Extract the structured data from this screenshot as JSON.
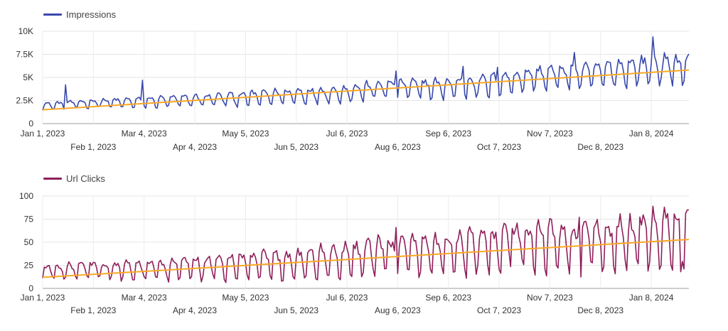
{
  "chart_data": [
    {
      "type": "line",
      "legend_position": "top-left",
      "grid": true,
      "series": [
        {
          "name": "Impressions",
          "color": "#3949ab",
          "monthly_avg": [
            {
              "date": "2023-01-01",
              "value": 1900
            },
            {
              "date": "2023-02-01",
              "value": 2200
            },
            {
              "date": "2023-03-01",
              "value": 2300
            },
            {
              "date": "2023-04-01",
              "value": 2500
            },
            {
              "date": "2023-05-01",
              "value": 2700
            },
            {
              "date": "2023-06-01",
              "value": 3000
            },
            {
              "date": "2023-07-01",
              "value": 3200
            },
            {
              "date": "2023-08-01",
              "value": 3800
            },
            {
              "date": "2023-09-01",
              "value": 3800
            },
            {
              "date": "2023-10-01",
              "value": 4200
            },
            {
              "date": "2023-11-01",
              "value": 5000
            },
            {
              "date": "2023-12-01",
              "value": 5200
            },
            {
              "date": "2024-01-01",
              "value": 5800
            },
            {
              "date": "2024-01-31",
              "value": 6000
            }
          ],
          "peaks": [
            {
              "date": "2023-01-15",
              "value": 4200
            },
            {
              "date": "2023-03-03",
              "value": 4700
            },
            {
              "date": "2023-08-05",
              "value": 5700
            },
            {
              "date": "2023-09-15",
              "value": 6200
            },
            {
              "date": "2023-10-06",
              "value": 6100
            },
            {
              "date": "2023-11-22",
              "value": 7700
            },
            {
              "date": "2024-01-09",
              "value": 9400
            }
          ],
          "weekly_amplitude_start": 350,
          "weekly_amplitude_end": 1500
        },
        {
          "name": "Trend",
          "color": "#f9a825",
          "trend": [
            {
              "date": "2023-01-01",
              "value": 1500
            },
            {
              "date": "2024-01-31",
              "value": 5800
            }
          ]
        }
      ],
      "x_start": "2023-01-01",
      "x_end": "2024-01-31",
      "xticks": [
        {
          "date": "2023-01-01",
          "label": "Jan 1, 2023",
          "row": 0
        },
        {
          "date": "2023-02-01",
          "label": "Feb 1, 2023",
          "row": 1
        },
        {
          "date": "2023-03-04",
          "label": "Mar 4, 2023",
          "row": 0
        },
        {
          "date": "2023-04-04",
          "label": "Apr 4, 2023",
          "row": 1
        },
        {
          "date": "2023-05-05",
          "label": "May 5, 2023",
          "row": 0
        },
        {
          "date": "2023-06-05",
          "label": "Jun 5, 2023",
          "row": 1
        },
        {
          "date": "2023-07-06",
          "label": "Jul 6, 2023",
          "row": 0
        },
        {
          "date": "2023-08-06",
          "label": "Aug 6, 2023",
          "row": 1
        },
        {
          "date": "2023-09-06",
          "label": "Sep 6, 2023",
          "row": 0
        },
        {
          "date": "2023-10-07",
          "label": "Oct 7, 2023",
          "row": 1
        },
        {
          "date": "2023-11-07",
          "label": "Nov 7, 2023",
          "row": 0
        },
        {
          "date": "2023-12-08",
          "label": "Dec 8, 2023",
          "row": 1
        },
        {
          "date": "2024-01-08",
          "label": "Jan 8, 2024",
          "row": 0
        }
      ],
      "ylim": [
        0,
        10000
      ],
      "yticks": [
        {
          "value": 0,
          "label": "0"
        },
        {
          "value": 2500,
          "label": "2.5K"
        },
        {
          "value": 5000,
          "label": "5K"
        },
        {
          "value": 7500,
          "label": "7.5K"
        },
        {
          "value": 10000,
          "label": "10K"
        }
      ]
    },
    {
      "type": "line",
      "legend_position": "top-left",
      "grid": true,
      "series": [
        {
          "name": "Url Clicks",
          "color": "#8e1f5a",
          "monthly_avg": [
            {
              "date": "2023-01-01",
              "value": 18
            },
            {
              "date": "2023-02-01",
              "value": 20
            },
            {
              "date": "2023-03-01",
              "value": 19
            },
            {
              "date": "2023-04-01",
              "value": 22
            },
            {
              "date": "2023-05-01",
              "value": 24
            },
            {
              "date": "2023-06-01",
              "value": 26
            },
            {
              "date": "2023-07-01",
              "value": 30
            },
            {
              "date": "2023-08-01",
              "value": 36
            },
            {
              "date": "2023-09-01",
              "value": 38
            },
            {
              "date": "2023-10-01",
              "value": 42
            },
            {
              "date": "2023-11-01",
              "value": 47
            },
            {
              "date": "2023-12-01",
              "value": 45
            },
            {
              "date": "2024-01-01",
              "value": 52
            },
            {
              "date": "2024-01-31",
              "value": 55
            }
          ],
          "peaks": [
            {
              "date": "2023-08-05",
              "value": 66
            },
            {
              "date": "2023-10-15",
              "value": 65
            },
            {
              "date": "2023-11-25",
              "value": 77
            },
            {
              "date": "2024-01-09",
              "value": 89
            },
            {
              "date": "2024-01-16",
              "value": 88
            },
            {
              "date": "2024-01-30",
              "value": 85
            }
          ],
          "troughs": [
            {
              "date": "2024-01-26",
              "value": 18
            }
          ],
          "weekly_amplitude_start": 7,
          "weekly_amplitude_end": 30
        },
        {
          "name": "Trend",
          "color": "#f9a825",
          "trend": [
            {
              "date": "2023-01-01",
              "value": 12
            },
            {
              "date": "2024-01-31",
              "value": 53
            }
          ]
        }
      ],
      "x_start": "2023-01-01",
      "x_end": "2024-01-31",
      "xticks": [
        {
          "date": "2023-01-01",
          "label": "Jan 1, 2023",
          "row": 0
        },
        {
          "date": "2023-02-01",
          "label": "Feb 1, 2023",
          "row": 1
        },
        {
          "date": "2023-03-04",
          "label": "Mar 4, 2023",
          "row": 0
        },
        {
          "date": "2023-04-04",
          "label": "Apr 4, 2023",
          "row": 1
        },
        {
          "date": "2023-05-05",
          "label": "May 5, 2023",
          "row": 0
        },
        {
          "date": "2023-06-05",
          "label": "Jun 5, 2023",
          "row": 1
        },
        {
          "date": "2023-07-06",
          "label": "Jul 6, 2023",
          "row": 0
        },
        {
          "date": "2023-08-06",
          "label": "Aug 6, 2023",
          "row": 1
        },
        {
          "date": "2023-09-06",
          "label": "Sep 6, 2023",
          "row": 0
        },
        {
          "date": "2023-10-07",
          "label": "Oct 7, 2023",
          "row": 1
        },
        {
          "date": "2023-11-07",
          "label": "Nov 7, 2023",
          "row": 0
        },
        {
          "date": "2023-12-08",
          "label": "Dec 8, 2023",
          "row": 1
        },
        {
          "date": "2024-01-08",
          "label": "Jan 8, 2024",
          "row": 0
        }
      ],
      "ylim": [
        0,
        100
      ],
      "yticks": [
        {
          "value": 0,
          "label": "0"
        },
        {
          "value": 25,
          "label": "25"
        },
        {
          "value": 50,
          "label": "50"
        },
        {
          "value": 75,
          "label": "75"
        },
        {
          "value": 100,
          "label": "100"
        }
      ]
    }
  ]
}
